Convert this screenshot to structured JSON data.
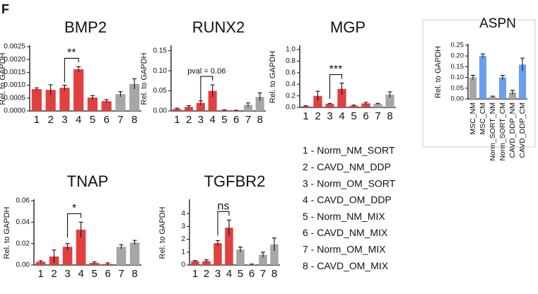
{
  "panel_label": "F",
  "key": [
    "1 - Norm_NM_SORT",
    "2 - CAVD_NM_DDP",
    "3 - Norm_OM_SORT",
    "4 - CAVD_OM_DDP",
    "5 - Norm_NM_MIX",
    "6 - CAVD_NM_MIX",
    "7 - Norm_OM_MIX",
    "8 - CAVD_OM_MIX"
  ],
  "chart_data": [
    {
      "type": "bar",
      "title": "BMP2",
      "ylabel": "Rel. to GAPDH",
      "categories": [
        "1",
        "2",
        "3",
        "4",
        "5",
        "6",
        "7",
        "8"
      ],
      "values": [
        0.00085,
        0.00082,
        0.0009,
        0.00162,
        0.00052,
        0.00038,
        0.00065,
        0.00105
      ],
      "errors": [
        5e-05,
        0.0002,
        0.0001,
        0.0001,
        8e-05,
        6e-05,
        0.0001,
        0.0002
      ],
      "colors": [
        "#e04040",
        "#e04040",
        "#e04040",
        "#e04040",
        "#e04040",
        "#e04040",
        "#a6a6a6",
        "#a6a6a6"
      ],
      "ylim": [
        0,
        0.0025
      ],
      "yticks": [
        {
          "value": 0,
          "label": "0.0000"
        },
        {
          "value": 0.0005,
          "label": "0.0005"
        },
        {
          "value": 0.001,
          "label": "0.0010"
        },
        {
          "value": 0.0015,
          "label": "0.0015"
        },
        {
          "value": 0.002,
          "label": "0.0020"
        },
        {
          "value": 0.0025,
          "label": "0.0025"
        }
      ],
      "bracket": {
        "label": "**",
        "categories": [
          "3",
          "4"
        ]
      }
    },
    {
      "type": "bar",
      "title": "RUNX2",
      "ylabel": "Rel. to GAPDH",
      "categories": [
        "1",
        "2",
        "3",
        "4",
        "5",
        "6",
        "7",
        "8"
      ],
      "values": [
        0.005,
        0.01,
        0.02,
        0.05,
        0.002,
        0.001,
        0.015,
        0.035
      ],
      "errors": [
        0.002,
        0.003,
        0.005,
        0.015,
        0.001,
        0.001,
        0.005,
        0.01
      ],
      "colors": [
        "#e04040",
        "#e04040",
        "#e04040",
        "#e04040",
        "#e04040",
        "#e04040",
        "#a6a6a6",
        "#a6a6a6"
      ],
      "ylim": [
        0,
        0.16
      ],
      "yticks": [
        {
          "value": 0,
          "label": "0.00"
        },
        0.05,
        {
          "value": 0.1,
          "label": "0.10"
        },
        0.15
      ],
      "bracket": {
        "label": "pval = 0.06",
        "categories": [
          "3",
          "4"
        ]
      }
    },
    {
      "type": "bar",
      "title": "MGP",
      "ylabel": "Rel. to GAPDH",
      "categories": [
        "1",
        "2",
        "3",
        "4",
        "5",
        "6",
        "7",
        "8"
      ],
      "values": [
        0.02,
        0.2,
        0.06,
        0.32,
        0.03,
        0.07,
        0.06,
        0.22
      ],
      "errors": [
        0.01,
        0.08,
        0.01,
        0.1,
        0.01,
        0.02,
        0.01,
        0.05
      ],
      "colors": [
        "#e04040",
        "#e04040",
        "#e04040",
        "#e04040",
        "#e04040",
        "#e04040",
        "#a6a6a6",
        "#a6a6a6"
      ],
      "ylim": [
        0,
        1.05
      ],
      "yticks": [
        {
          "value": 0,
          "label": "0.0"
        },
        0.2,
        0.4,
        0.6,
        0.8,
        {
          "value": 1,
          "label": "1.0"
        }
      ],
      "bracket": {
        "label": "***",
        "categories": [
          "3",
          "4"
        ]
      }
    },
    {
      "type": "bar",
      "title": "ASPN",
      "ylabel": "Rel. to GAPDH",
      "categories": [
        "MSC_NM",
        "MSC_CM",
        "Norm_SORT_NM",
        "Norm_SORT_CM",
        "CAVD_DDP_NM",
        "CAVD_DDP_CM"
      ],
      "values": [
        0.1,
        0.2,
        0.01,
        0.1,
        0.03,
        0.16
      ],
      "errors": [
        0.01,
        0.01,
        0.003,
        0.01,
        0.01,
        0.03
      ],
      "colors": [
        "#a6a6a6",
        "#6a9ff0",
        "#a6a6a6",
        "#6a9ff0",
        "#a6a6a6",
        "#6a9ff0"
      ],
      "ylim": [
        0,
        0.25
      ],
      "yticks": [
        {
          "value": 0,
          "label": "0.00"
        },
        0.05,
        {
          "value": 0.1,
          "label": "0.10"
        },
        0.15,
        {
          "value": 0.2,
          "label": "0.20"
        },
        0.25
      ]
    },
    {
      "type": "bar",
      "title": "TNAP",
      "ylabel": "Rel. to GAPDH",
      "categories": [
        "1",
        "2",
        "3",
        "4",
        "5",
        "6",
        "7",
        "8"
      ],
      "values": [
        0.003,
        0.008,
        0.017,
        0.033,
        0.002,
        0.001,
        0.017,
        0.021
      ],
      "errors": [
        0.001,
        0.006,
        0.003,
        0.007,
        0.001,
        0.001,
        0.002,
        0.002
      ],
      "colors": [
        "#e04040",
        "#e04040",
        "#e04040",
        "#e04040",
        "#e04040",
        "#e04040",
        "#a6a6a6",
        "#a6a6a6"
      ],
      "ylim": [
        0,
        0.06
      ],
      "yticks": [
        {
          "value": 0,
          "label": "0.00"
        },
        0.02,
        0.04,
        0.06
      ],
      "bracket": {
        "label": "*",
        "categories": [
          "3",
          "4"
        ]
      }
    },
    {
      "type": "bar",
      "title": "TGFBR2",
      "ylabel": "Rel. to GAPDH",
      "categories": [
        "1",
        "2",
        "3",
        "4",
        "5",
        "6",
        "7",
        "8"
      ],
      "values": [
        0.3,
        0.3,
        1.7,
        2.9,
        1.2,
        0.05,
        0.8,
        1.6
      ],
      "errors": [
        0.05,
        0.1,
        0.2,
        0.6,
        0.2,
        0.02,
        0.2,
        0.5
      ],
      "colors": [
        "#e04040",
        "#e04040",
        "#e04040",
        "#e04040",
        "#a6a6a6",
        "#a6a6a6",
        "#a6a6a6",
        "#a6a6a6"
      ],
      "ylim": [
        0,
        5
      ],
      "yticks": [
        0,
        1,
        2,
        3,
        4
      ],
      "bracket": {
        "label": "ns",
        "categories": [
          "3",
          "4"
        ]
      }
    }
  ]
}
